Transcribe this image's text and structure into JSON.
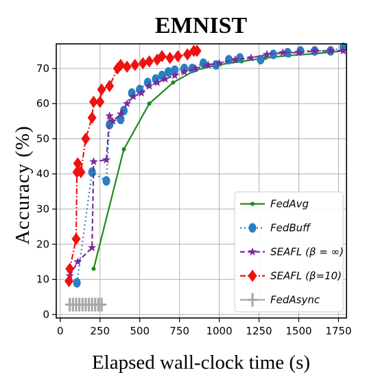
{
  "chart_data": {
    "type": "line",
    "title": "EMNIST",
    "xlabel": "Elapsed wall-clock time (s)",
    "ylabel": "Accuracy (%)",
    "xlim": [
      -25,
      1800
    ],
    "ylim": [
      -1,
      77
    ],
    "x_ticks": [
      0,
      250,
      500,
      750,
      1000,
      1250,
      1500,
      1750
    ],
    "y_ticks": [
      0,
      10,
      20,
      30,
      40,
      50,
      60,
      70
    ],
    "grid": true,
    "legend_position": "lower-right",
    "series": [
      {
        "name": "FedAvg",
        "color": "#1a8a1a",
        "line_style": "solid",
        "marker": "dot",
        "points": [
          [
            210,
            13
          ],
          [
            400,
            47
          ],
          [
            560,
            60
          ],
          [
            710,
            66
          ],
          [
            850,
            69.5
          ],
          [
            990,
            71
          ],
          [
            1140,
            72
          ],
          [
            1290,
            73
          ],
          [
            1440,
            73.7
          ],
          [
            1600,
            74.2
          ],
          [
            1780,
            75
          ]
        ]
      },
      {
        "name": "FedBuff",
        "color": "#2a7fc0",
        "line_style": "dotted",
        "marker": "circle",
        "points": [
          [
            105,
            9
          ],
          [
            200,
            40.5
          ],
          [
            290,
            38
          ],
          [
            310,
            54
          ],
          [
            380,
            55.5
          ],
          [
            400,
            58
          ],
          [
            450,
            63
          ],
          [
            500,
            64
          ],
          [
            550,
            66
          ],
          [
            600,
            67
          ],
          [
            640,
            68
          ],
          [
            680,
            69
          ],
          [
            720,
            69.5
          ],
          [
            780,
            70
          ],
          [
            830,
            70
          ],
          [
            900,
            71.5
          ],
          [
            980,
            71
          ],
          [
            1060,
            72.5
          ],
          [
            1130,
            73
          ],
          [
            1260,
            72.5
          ],
          [
            1340,
            74
          ],
          [
            1430,
            74.5
          ],
          [
            1510,
            75
          ],
          [
            1600,
            75
          ],
          [
            1700,
            75
          ],
          [
            1780,
            76
          ]
        ]
      },
      {
        "name": "SEAFL (β = ∞)",
        "color": "#7a2a9a",
        "line_style": "dashed",
        "marker": "star",
        "points": [
          [
            60,
            11
          ],
          [
            110,
            15
          ],
          [
            200,
            19
          ],
          [
            210,
            43.5
          ],
          [
            290,
            44
          ],
          [
            310,
            56.5
          ],
          [
            330,
            55
          ],
          [
            380,
            57
          ],
          [
            420,
            60
          ],
          [
            460,
            62
          ],
          [
            510,
            63
          ],
          [
            560,
            65
          ],
          [
            610,
            66
          ],
          [
            660,
            67
          ],
          [
            720,
            68
          ],
          [
            780,
            69
          ],
          [
            850,
            70
          ],
          [
            930,
            71
          ],
          [
            1000,
            71.5
          ],
          [
            1100,
            72.5
          ],
          [
            1200,
            73
          ],
          [
            1300,
            74
          ],
          [
            1400,
            74.5
          ],
          [
            1500,
            74.5
          ],
          [
            1600,
            75
          ],
          [
            1700,
            75
          ],
          [
            1780,
            75
          ]
        ]
      },
      {
        "name": "SEAFL (β=10)",
        "color": "#ee1111",
        "line_style": "dashdot",
        "marker": "diamond",
        "points": [
          [
            55,
            9.5
          ],
          [
            60,
            13
          ],
          [
            100,
            21.5
          ],
          [
            105,
            40.5
          ],
          [
            110,
            43
          ],
          [
            130,
            40.5
          ],
          [
            160,
            50
          ],
          [
            200,
            56
          ],
          [
            210,
            60.5
          ],
          [
            250,
            60.5
          ],
          [
            260,
            64
          ],
          [
            310,
            65
          ],
          [
            360,
            70
          ],
          [
            380,
            71
          ],
          [
            420,
            70.5
          ],
          [
            470,
            71
          ],
          [
            520,
            71.5
          ],
          [
            560,
            72
          ],
          [
            610,
            72.5
          ],
          [
            640,
            73.5
          ],
          [
            690,
            73
          ],
          [
            740,
            73.5
          ],
          [
            800,
            74
          ],
          [
            840,
            75
          ],
          [
            860,
            75
          ]
        ]
      },
      {
        "name": "FedAsync",
        "color": "#a8a8a8",
        "line_style": "solid",
        "marker": "tri",
        "points": [
          [
            60,
            2.8
          ],
          [
            80,
            2.8
          ],
          [
            100,
            2.8
          ],
          [
            120,
            2.8
          ],
          [
            140,
            2.8
          ],
          [
            160,
            2.8
          ],
          [
            180,
            2.8
          ],
          [
            200,
            2.8
          ],
          [
            220,
            2.8
          ],
          [
            240,
            2.8
          ],
          [
            260,
            2.8
          ]
        ]
      }
    ]
  }
}
